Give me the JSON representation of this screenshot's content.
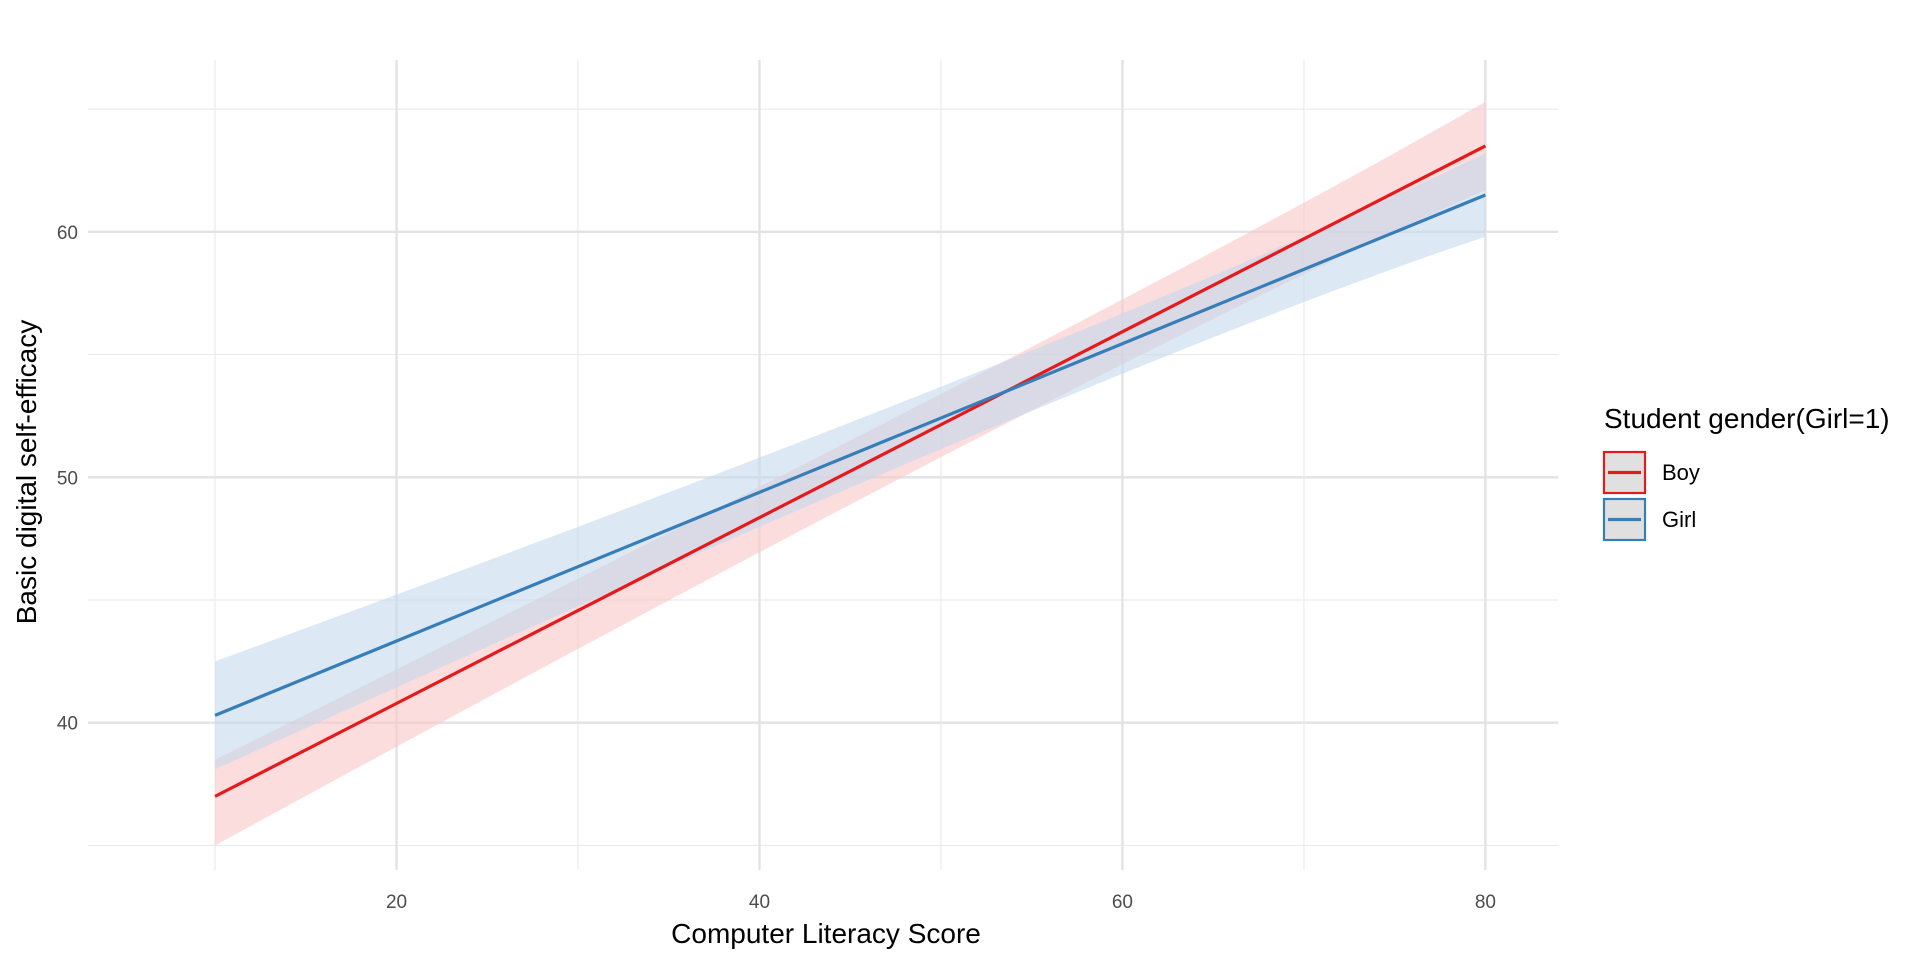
{
  "chart_data": {
    "type": "line",
    "title": "",
    "xlabel": "Computer Literacy Score",
    "ylabel": "Basic digital self-efficacy",
    "xlim": [
      3,
      84
    ],
    "ylim": [
      34,
      67
    ],
    "x_ticks": [
      20,
      40,
      60,
      80
    ],
    "y_ticks": [
      40,
      50,
      60
    ],
    "x_minor_ticks": [
      10,
      30,
      50,
      70
    ],
    "y_minor_ticks": [
      35,
      45,
      55,
      65
    ],
    "grid": true,
    "legend": {
      "title": "Student gender(Girl=1)",
      "position": "right"
    },
    "series": [
      {
        "name": "Boy",
        "color": "#e41a1c",
        "band_color": "#f8c6c8",
        "x": [
          10,
          80
        ],
        "y": [
          37.0,
          63.5
        ],
        "lower": [
          35.0,
          61.7
        ],
        "upper": [
          38.5,
          65.3
        ],
        "mid_band": {
          "x": 60,
          "lower": 55.2,
          "upper": 56.8
        }
      },
      {
        "name": "Girl",
        "color": "#377eb8",
        "band_color": "#c5d9ec",
        "x": [
          10,
          80
        ],
        "y": [
          40.3,
          61.5
        ],
        "lower": [
          38.1,
          59.8
        ],
        "upper": [
          42.5,
          63.2
        ],
        "mid_band": {
          "x": 60,
          "lower": 54.9,
          "upper": 56.0
        }
      }
    ]
  }
}
